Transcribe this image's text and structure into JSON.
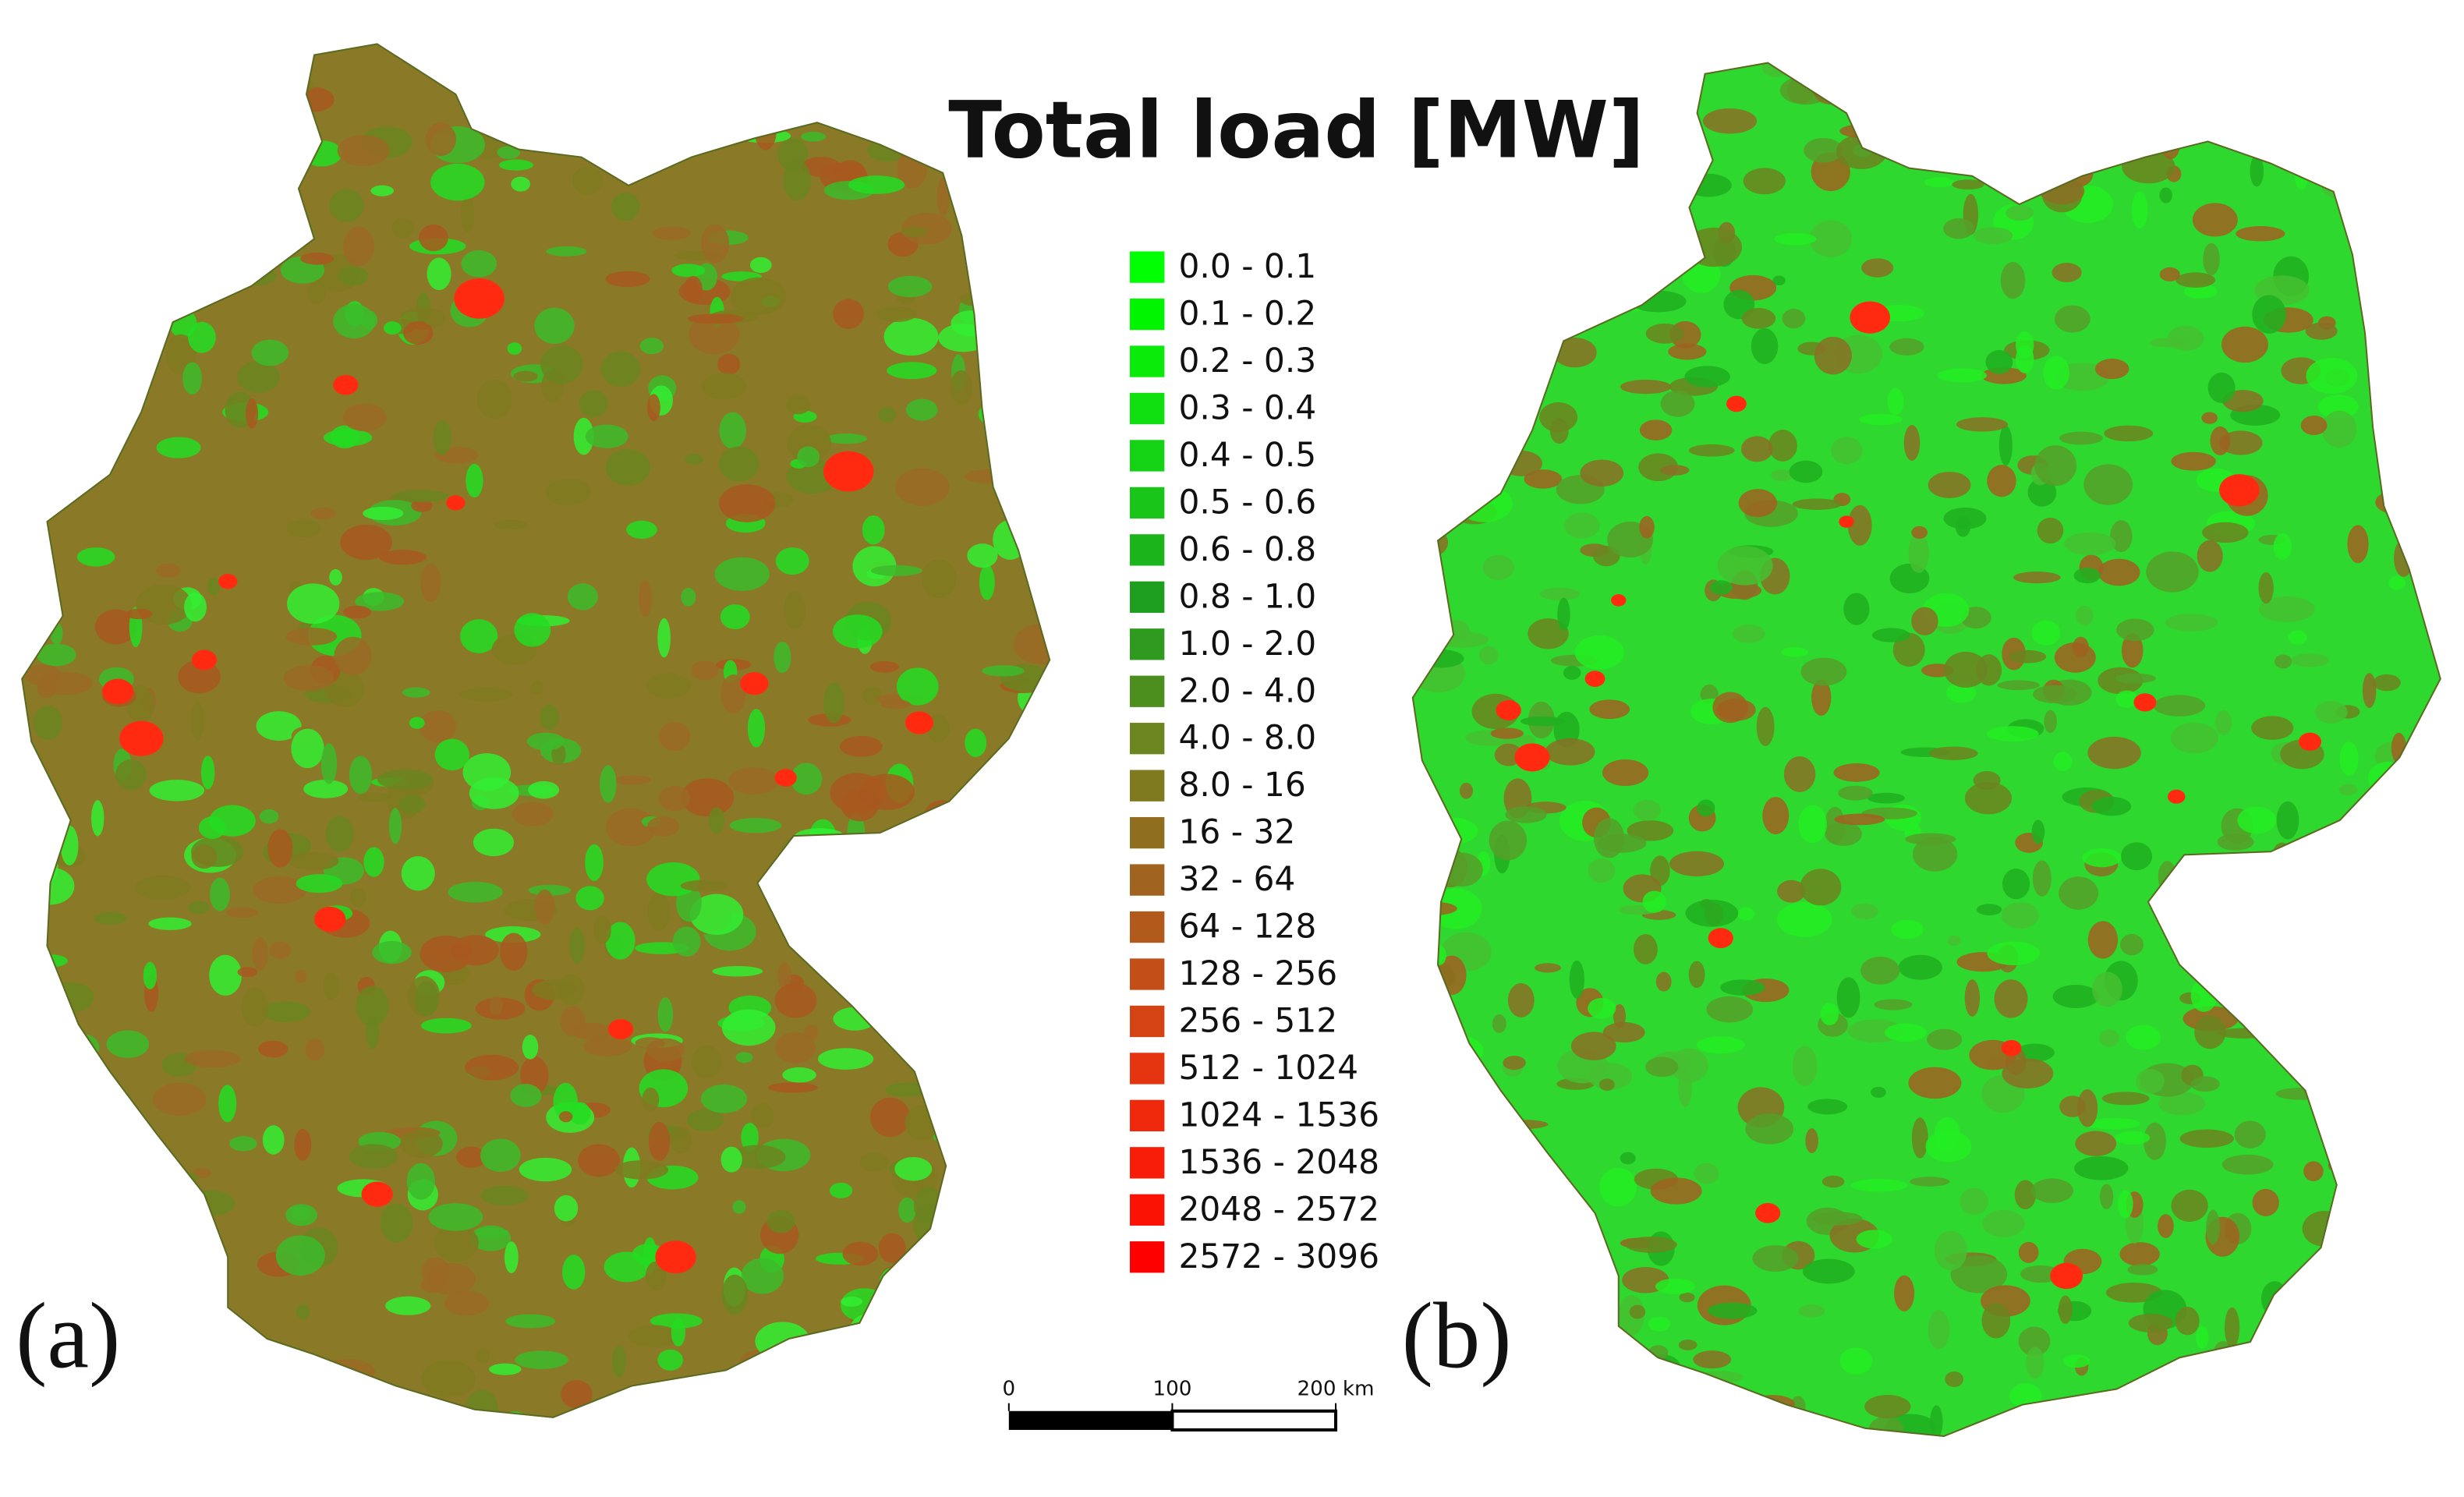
{
  "title": "Total load [MW]",
  "legend": [
    {
      "label": "0.0 - 0.1",
      "color": "#00ff00"
    },
    {
      "label": "0.1 - 0.2",
      "color": "#00f500"
    },
    {
      "label": "0.2 - 0.3",
      "color": "#0aeb0a"
    },
    {
      "label": "0.3 - 0.4",
      "color": "#10df10"
    },
    {
      "label": "0.4 - 0.5",
      "color": "#14d214"
    },
    {
      "label": "0.5 - 0.6",
      "color": "#18c518"
    },
    {
      "label": "0.6 - 0.8",
      "color": "#1bb41b"
    },
    {
      "label": "0.8 - 1.0",
      "color": "#1e9e1e"
    },
    {
      "label": "1.0 - 2.0",
      "color": "#2f9a1f"
    },
    {
      "label": "2.0 - 4.0",
      "color": "#4d8f1f"
    },
    {
      "label": "4.0 - 8.0",
      "color": "#6b8520"
    },
    {
      "label": "8.0 - 16",
      "color": "#7f7a20"
    },
    {
      "label": "16 - 32",
      "color": "#8f6e20"
    },
    {
      "label": "32 - 64",
      "color": "#a06420"
    },
    {
      "label": "64 - 128",
      "color": "#b25a1c"
    },
    {
      "label": "128 - 256",
      "color": "#c44e18"
    },
    {
      "label": "256 - 512",
      "color": "#d44314"
    },
    {
      "label": "512 - 1024",
      "color": "#e43510"
    },
    {
      "label": "1024 - 1536",
      "color": "#f0280c"
    },
    {
      "label": "1536 - 2048",
      "color": "#f81d08"
    },
    {
      "label": "2048 - 2572",
      "color": "#fc1204"
    },
    {
      "label": "2572 - 3096",
      "color": "#ff0000"
    }
  ],
  "panels": [
    "(a)",
    "(b)"
  ],
  "scale_bar": {
    "labels": [
      "0",
      "100",
      "200 km"
    ]
  }
}
